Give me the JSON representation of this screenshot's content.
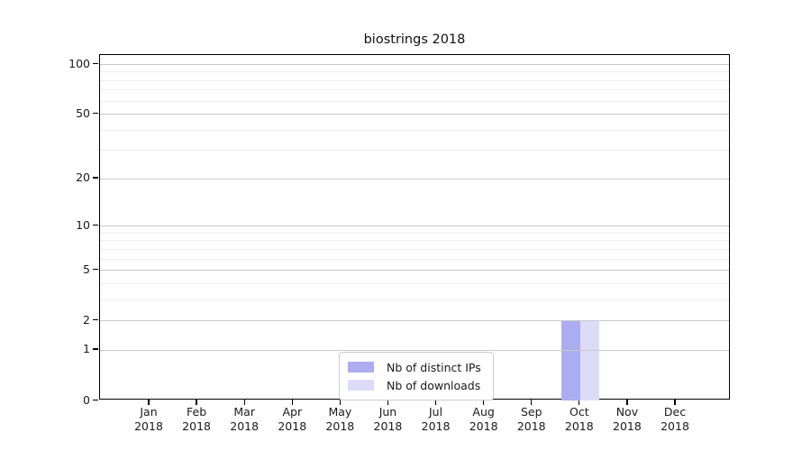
{
  "figure": {
    "background": "#ffffff"
  },
  "chart_data": {
    "type": "bar",
    "title": "biostrings 2018",
    "categories_month": [
      "Jan",
      "Feb",
      "Mar",
      "Apr",
      "May",
      "Jun",
      "Jul",
      "Aug",
      "Sep",
      "Oct",
      "Nov",
      "Dec"
    ],
    "categories_year": [
      "2018",
      "2018",
      "2018",
      "2018",
      "2018",
      "2018",
      "2018",
      "2018",
      "2018",
      "2018",
      "2018",
      "2018"
    ],
    "series": [
      {
        "name": "Nb of distinct IPs",
        "color": "#acacf0",
        "values": [
          0,
          0,
          0,
          0,
          0,
          0,
          0,
          0,
          0,
          2,
          0,
          0
        ]
      },
      {
        "name": "Nb of downloads",
        "color": "#dcdcf9",
        "values": [
          0,
          0,
          0,
          0,
          0,
          0,
          0,
          0,
          0,
          2,
          0,
          0
        ]
      }
    ],
    "y_scale": "log1p",
    "y_ticks": [
      0,
      1,
      2,
      5,
      10,
      20,
      50,
      100
    ],
    "y_minor_gridlines": [
      3,
      4,
      6,
      7,
      8,
      9,
      30,
      40,
      60,
      70,
      80,
      90
    ],
    "ylim": [
      0,
      113
    ],
    "grid": "horizontal-only",
    "legend_position": "bottom-center",
    "colors": {
      "axis": "#000000",
      "major_grid": "#c9c9c9",
      "minor_grid": "#eeeeee",
      "text": "#1a1a1a",
      "plot_background": "#ffffff"
    }
  }
}
